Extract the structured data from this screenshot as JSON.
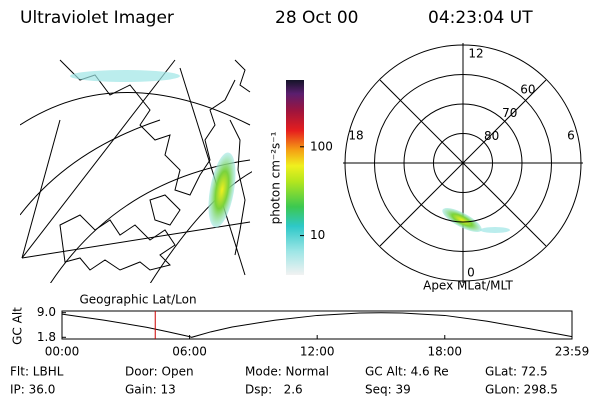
{
  "header": {
    "title": "Ultraviolet Imager",
    "date": "28 Oct 00",
    "time": "04:23:04 UT"
  },
  "map": {
    "label": "Geographic Lat/Lon"
  },
  "colorbar": {
    "label": "photon cm⁻²s⁻¹",
    "log_scale": true,
    "lim": [
      3.6,
      565
    ],
    "ticks": [
      10,
      100
    ]
  },
  "polar": {
    "label": "Apex MLat/MLT",
    "rlim": [
      90,
      50
    ],
    "hour_labels": [
      "12",
      "18",
      "6",
      "0"
    ],
    "lat_rings": [
      80,
      70,
      60
    ]
  },
  "chart_data": {
    "type": "line",
    "y_label": "GC Alt",
    "x": [
      0,
      2,
      4,
      5,
      6,
      6.1,
      7,
      8,
      10,
      12,
      14,
      15,
      16,
      18,
      20,
      22,
      23.983
    ],
    "values": [
      8.6,
      6.8,
      4.7,
      3.4,
      2.0,
      1.8,
      3.4,
      4.8,
      6.8,
      8.2,
      8.9,
      9.0,
      8.9,
      8.2,
      6.5,
      4.3,
      2.0
    ],
    "color": "#000000",
    "marker_x": 4.3844,
    "marker_color": "#cc0000",
    "xlim": [
      0,
      23.983
    ],
    "ylim": [
      1.3,
      9.5
    ],
    "yticks": [
      {
        "value": 1.8,
        "label": "1.8"
      },
      {
        "value": 9.0,
        "label": "9.0"
      }
    ],
    "xticks": [
      {
        "value": 0,
        "label": "00:00"
      },
      {
        "value": 6,
        "label": "06:00"
      },
      {
        "value": 12,
        "label": "12:00"
      },
      {
        "value": 18,
        "label": "18:00"
      },
      {
        "value": 23.983,
        "label": "23:59"
      }
    ]
  },
  "footer": {
    "rows": [
      [
        "Flt: LBHL",
        "Door: Open",
        "Mode: Normal",
        "GC Alt: 4.6 Re",
        "GLat: 72.5"
      ],
      [
        "IP: 36.0",
        "Gain: 13",
        "Dsp:   2.6",
        "Seq: 39",
        "GLon: 298.5"
      ]
    ]
  }
}
